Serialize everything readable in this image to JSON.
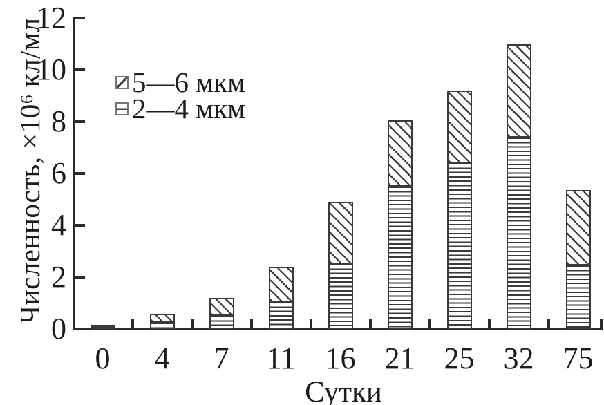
{
  "chart_data": {
    "type": "bar",
    "stacked": true,
    "title": "",
    "xlabel": "Сутки",
    "ylabel": "Численность, ×10⁶ кл/мл",
    "ylabel_parts": {
      "prefix": "Численность, ×10",
      "sup": "6",
      "suffix": " кл/мл"
    },
    "categories": [
      "0",
      "4",
      "7",
      "11",
      "16",
      "21",
      "25",
      "32",
      "75"
    ],
    "series": [
      {
        "name": "2—4 мкм",
        "pattern": "horizontal-lines",
        "stack_order": "bottom",
        "values": [
          0.1,
          0.25,
          0.5,
          1.05,
          2.5,
          5.5,
          6.4,
          7.4,
          2.45
        ]
      },
      {
        "name": "5—6 мкм",
        "pattern": "diagonal-hatch",
        "stack_order": "top",
        "values": [
          0.05,
          0.35,
          0.7,
          1.35,
          2.4,
          2.55,
          2.8,
          3.6,
          2.9
        ]
      }
    ],
    "stack_totals": [
      0.15,
      0.6,
      1.2,
      2.4,
      4.9,
      8.05,
      9.2,
      11.0,
      5.35
    ],
    "y_ticks": [
      0,
      2,
      4,
      6,
      8,
      10,
      12
    ],
    "ylim": [
      0,
      12
    ],
    "grid": false,
    "legend_position": "upper-left",
    "colors": {
      "background": "#ffffff",
      "ink": "#1c1c1c",
      "axis": "#2b2b2b",
      "bar_border": "#3a3a3a",
      "hatch_line": "#3a3a3a",
      "legend_swatch_border": "#757575"
    }
  },
  "legend": {
    "items": [
      {
        "label": "5—6 мкм",
        "pattern": "diagonal-hatch"
      },
      {
        "label": "2—4 мкм",
        "pattern": "horizontal-lines"
      }
    ]
  }
}
